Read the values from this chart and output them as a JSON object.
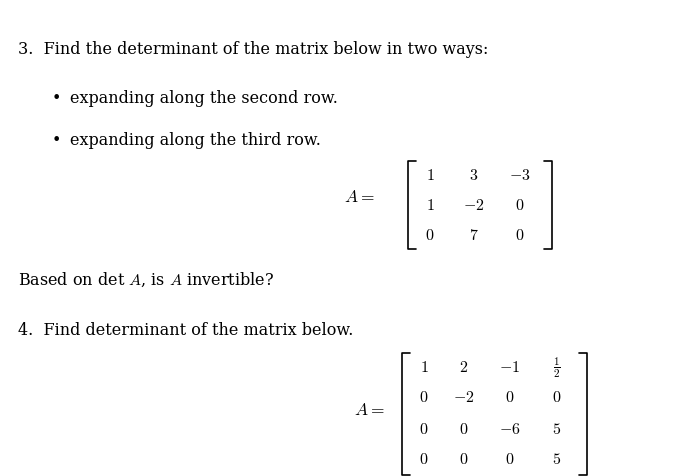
{
  "background_color": "#ffffff",
  "text_color": "#000000",
  "line1": "3.  Find the determinant of the matrix below in two ways:",
  "bullet1": "expanding along the second row.",
  "bullet2": "expanding along the third row.",
  "matrix3_label": "A =",
  "matrix3": [
    [
      "1",
      "3",
      "-3"
    ],
    [
      "1",
      "-2",
      "0"
    ],
    [
      "0",
      "7",
      "0"
    ]
  ],
  "question3_followup": "Based on det $A$, is $A$ invertible?",
  "line4": "4.  Find determinant of the matrix below.",
  "matrix4_label": "A =",
  "matrix4": [
    [
      "1",
      "2",
      "-1",
      "\\frac{1}{2}"
    ],
    [
      "0",
      "-2",
      "0",
      "0"
    ],
    [
      "0",
      "0",
      "-6",
      "5"
    ],
    [
      "0",
      "0",
      "0",
      "5"
    ]
  ]
}
